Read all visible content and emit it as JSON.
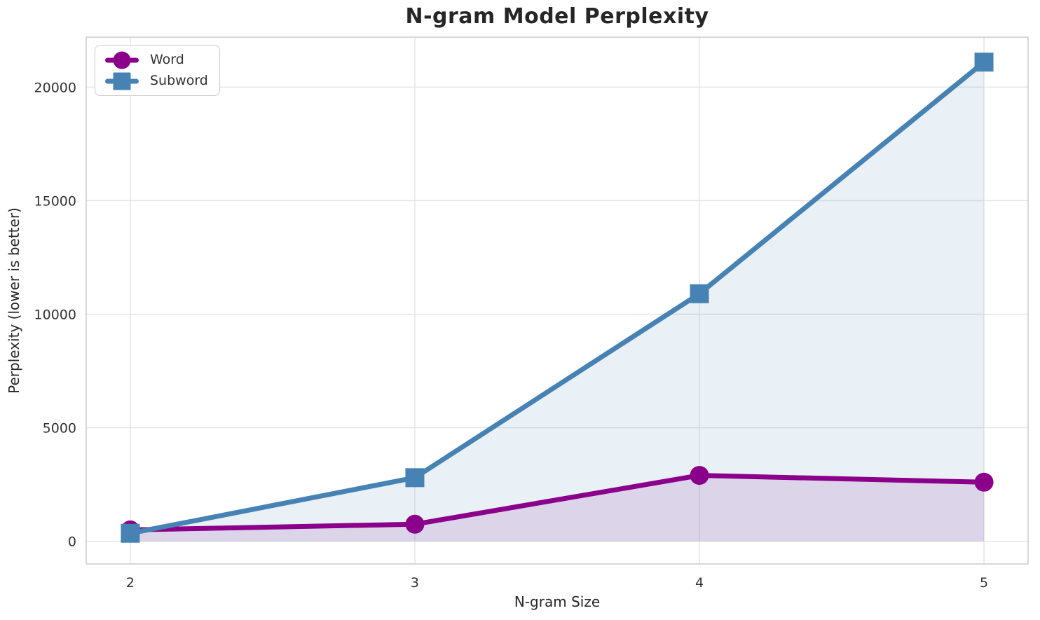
{
  "chart_data": {
    "type": "line",
    "title": "N-gram Model Perplexity",
    "xlabel": "N-gram Size",
    "ylabel": "Perplexity (lower is better)",
    "x": [
      2,
      3,
      4,
      5
    ],
    "x_tick_labels": [
      "2",
      "3",
      "4",
      "5"
    ],
    "y_ticks": [
      0,
      5000,
      10000,
      15000,
      20000
    ],
    "y_tick_labels": [
      "0",
      "5000",
      "10000",
      "15000",
      "20000"
    ],
    "xlim": [
      1.845,
      5.155
    ],
    "ylim": [
      -1000,
      22200
    ],
    "grid": true,
    "legend_position": "upper left",
    "series": [
      {
        "name": "Word",
        "marker": "circle",
        "color": "#8B008B",
        "fill_alpha": 0.12,
        "values": [
          500,
          750,
          2900,
          2600
        ]
      },
      {
        "name": "Subword",
        "marker": "square",
        "color": "#4682B4",
        "fill_alpha": 0.12,
        "values": [
          350,
          2800,
          10900,
          21100
        ]
      }
    ]
  },
  "colors": {
    "background": "#ffffff",
    "grid": "#e4e4e4",
    "spine": "#cccccc",
    "title_text": "#262626",
    "tick_text": "#333333"
  }
}
